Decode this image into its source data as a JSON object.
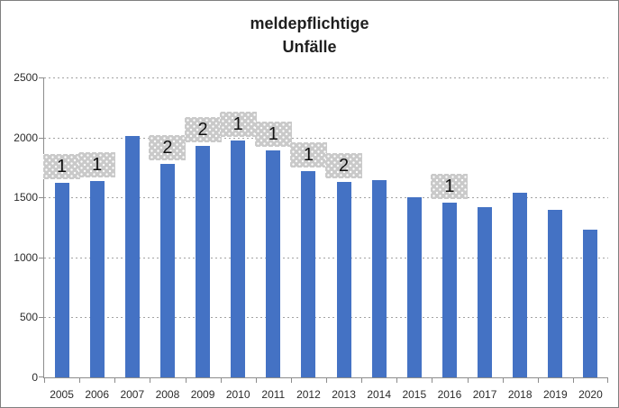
{
  "window": {
    "background_color": "#FFFFFF",
    "border_color": "#7F7F7F"
  },
  "chart_data": {
    "type": "bar",
    "title": "meldepflichtige Unfälle",
    "title_lines": [
      "meldepflichtige",
      "Unfälle"
    ],
    "categories": [
      "2005",
      "2006",
      "2007",
      "2008",
      "2009",
      "2010",
      "2011",
      "2012",
      "2013",
      "2014",
      "2015",
      "2016",
      "2017",
      "2018",
      "2019",
      "2020"
    ],
    "series": [
      {
        "name": "meldepflichtige Unfälle",
        "color": "#4472C4",
        "values": [
          1625,
          1635,
          2010,
          1780,
          1930,
          1975,
          1895,
          1720,
          1630,
          1645,
          1500,
          1455,
          1420,
          1540,
          1395,
          1230
        ]
      }
    ],
    "data_labels": [
      "1",
      "1",
      "",
      "2",
      "2",
      "1",
      "1",
      "1",
      "2",
      "",
      "",
      "1",
      "",
      "",
      "",
      ""
    ],
    "data_label_box": {
      "fill": "#C9C9C9",
      "pattern": "white-dots",
      "text_color": "#111111"
    },
    "xlabel": "",
    "ylabel": "",
    "ylim": [
      0,
      2500
    ],
    "yticks": [
      0,
      500,
      1000,
      1500,
      2000,
      2500
    ],
    "ytick_labels": [
      "0",
      "500",
      "1000",
      "1500",
      "2000",
      "2500"
    ],
    "grid": "horizontal",
    "gridline_style": "dashed",
    "gridline_color": "#A3A3A3",
    "axis_color": "#8C8C8C",
    "tick_label_color": "#2B2B2B",
    "legend": "none"
  }
}
